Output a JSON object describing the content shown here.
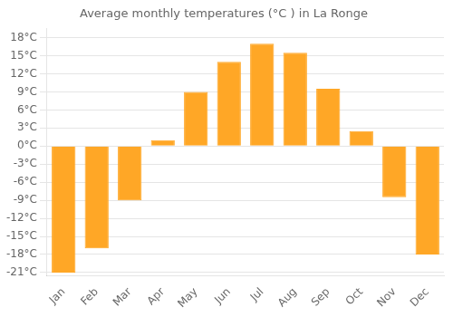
{
  "chart_data": {
    "type": "bar",
    "title": "Average monthly temperatures (°C ) in La Ronge",
    "categories": [
      "Jan",
      "Feb",
      "Mar",
      "Apr",
      "May",
      "Jun",
      "Jul",
      "Aug",
      "Sep",
      "Oct",
      "Nov",
      "Dec"
    ],
    "values": [
      -21,
      -17,
      -9,
      1,
      9,
      14,
      17,
      15.5,
      9.5,
      2.5,
      -8.5,
      -18
    ],
    "color": "#FFA726",
    "ylim": [
      -21.5,
      19.5
    ],
    "yticks": [
      {
        "value": -21,
        "label": "-21°C"
      },
      {
        "value": -18,
        "label": "-18°C"
      },
      {
        "value": -15,
        "label": "-15°C"
      },
      {
        "value": -12,
        "label": "-12°C"
      },
      {
        "value": -9,
        "label": "-9°C"
      },
      {
        "value": -6,
        "label": "-6°C"
      },
      {
        "value": -3,
        "label": "-3°C"
      },
      {
        "value": 0,
        "label": "0°C"
      },
      {
        "value": 3,
        "label": "3°C"
      },
      {
        "value": 6,
        "label": "6°C"
      },
      {
        "value": 9,
        "label": "9°C"
      },
      {
        "value": 12,
        "label": "12°C"
      },
      {
        "value": 15,
        "label": "15°C"
      },
      {
        "value": 18,
        "label": "18°C"
      }
    ],
    "grid": "y"
  }
}
